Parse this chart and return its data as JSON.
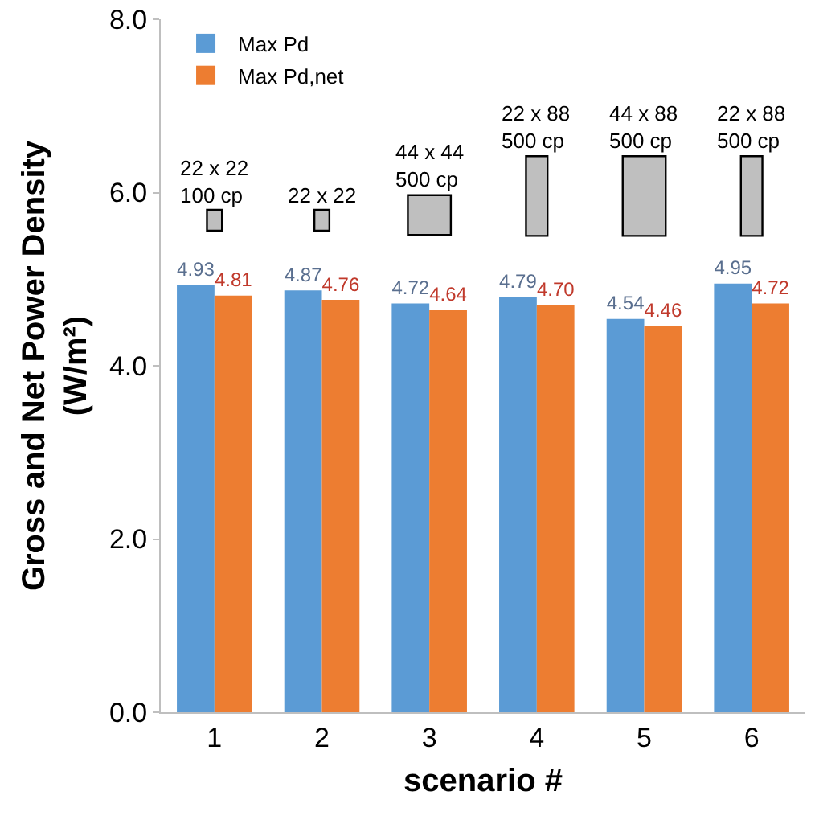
{
  "chart_data": {
    "type": "bar",
    "xlabel": "scenario #",
    "ylabel": "Gross and Net Power Density\n(W/m²)",
    "categories": [
      "1",
      "2",
      "3",
      "4",
      "5",
      "6"
    ],
    "series": [
      {
        "name": "Max Pd",
        "color": "#5b9bd5",
        "values": [
          4.93,
          4.87,
          4.72,
          4.79,
          4.54,
          4.95
        ],
        "value_labels": [
          "4.93",
          "4.87",
          "4.72",
          "4.79",
          "4.54",
          "4.95"
        ]
      },
      {
        "name": "Max Pd,net",
        "color": "#ed7d31",
        "values": [
          4.81,
          4.76,
          4.64,
          4.7,
          4.46,
          4.72
        ],
        "value_labels": [
          "4.81",
          "4.76",
          "4.64",
          "4.70",
          "4.46",
          "4.72"
        ]
      }
    ],
    "ylim": [
      0,
      8
    ],
    "yticks": [
      {
        "value": 0,
        "label": "0.0"
      },
      {
        "value": 2,
        "label": "2.0"
      },
      {
        "value": 4,
        "label": "4.0"
      },
      {
        "value": 6,
        "label": "6.0"
      },
      {
        "value": 8,
        "label": "8.0"
      }
    ],
    "grid": false,
    "legend": "top left",
    "annotations": [
      "22 x 22\n100 cp",
      "22 x 22",
      "44 x 44\n500 cp",
      "22 x 88\n500 cp",
      "44 x 88\n500 cp",
      "22 x 88\n500 cp"
    ]
  }
}
